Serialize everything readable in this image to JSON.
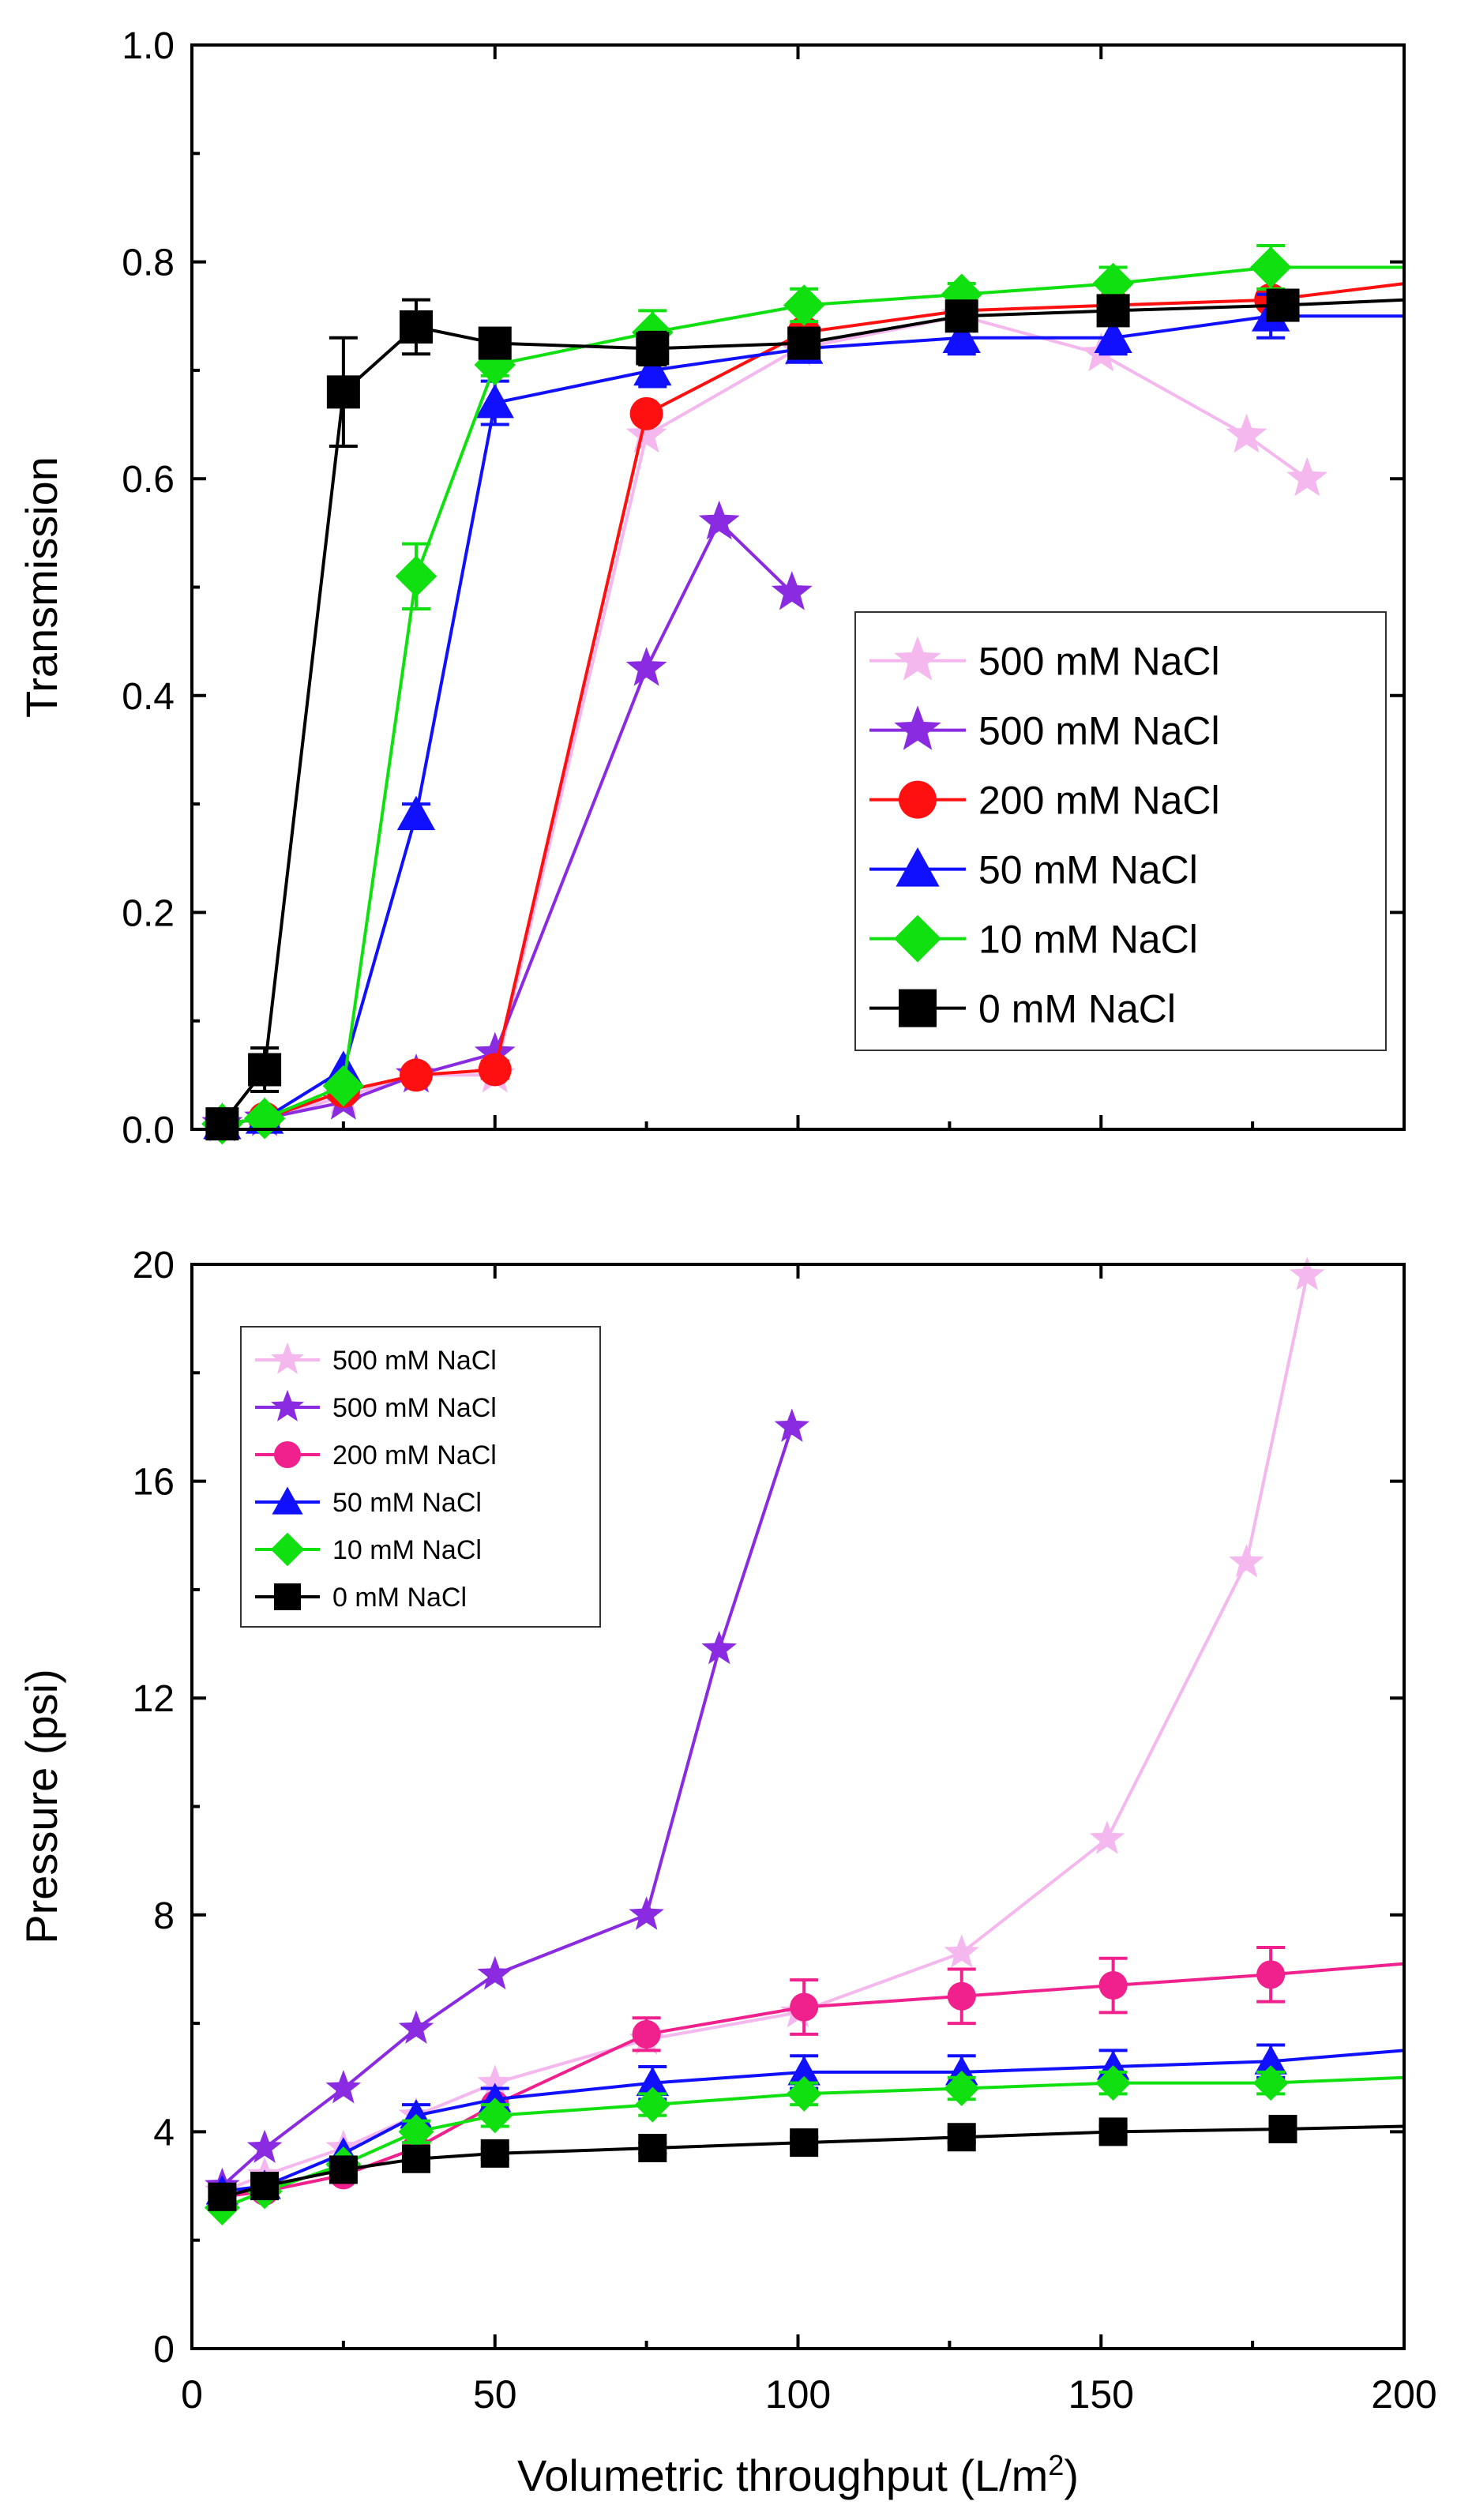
{
  "chart_data": [
    {
      "type": "line",
      "title": "",
      "xlabel": "",
      "ylabel": "Transmission",
      "xlim": [
        0,
        200
      ],
      "ylim": [
        0,
        1.0
      ],
      "xticks": [
        0,
        50,
        100,
        150,
        200
      ],
      "yticks": [
        0.0,
        0.2,
        0.4,
        0.6,
        0.8,
        1.0
      ],
      "xtick_labels": [
        "",
        "",
        "",
        "",
        ""
      ],
      "ytick_labels": [
        "0.0",
        "0.2",
        "0.4",
        "0.6",
        "0.8",
        "1.0"
      ],
      "grid": false,
      "legend": "middle-right",
      "series": [
        {
          "name": "500 mM NaCl",
          "color": "#f4b8ee",
          "marker": "star",
          "x": [
            5,
            12,
            25,
            37,
            50,
            75,
            100,
            127,
            150,
            174,
            184
          ],
          "y": [
            0.005,
            0.01,
            0.03,
            0.05,
            0.05,
            0.64,
            0.72,
            0.75,
            0.715,
            0.64,
            0.6
          ],
          "err": []
        },
        {
          "name": "500 mM NaCl",
          "color": "#8a2be2",
          "marker": "star",
          "x": [
            5,
            12,
            25,
            37,
            50,
            75,
            87,
            99
          ],
          "y": [
            0.005,
            0.01,
            0.025,
            0.05,
            0.07,
            0.425,
            0.56,
            0.495
          ],
          "err": []
        },
        {
          "name": "200 mM NaCl",
          "color": "#ff1010",
          "marker": "circle",
          "x": [
            5,
            12,
            25,
            37,
            50,
            75,
            101,
            127,
            152,
            178,
            200
          ],
          "y": [
            0.005,
            0.01,
            0.035,
            0.05,
            0.055,
            0.66,
            0.735,
            0.755,
            0.76,
            0.765,
            0.78
          ],
          "err": [
            0,
            0,
            0,
            0,
            0.008,
            0,
            0,
            0,
            0,
            0,
            0
          ]
        },
        {
          "name": "50 mM NaCl",
          "color": "#1010ff",
          "marker": "triangle",
          "x": [
            5,
            12,
            25,
            37,
            50,
            76,
            101,
            127,
            152,
            178,
            200
          ],
          "y": [
            0.005,
            0.01,
            0.055,
            0.29,
            0.67,
            0.7,
            0.72,
            0.73,
            0.73,
            0.75,
            0.75
          ],
          "err": [
            0,
            0,
            0,
            0.01,
            0.02,
            0.015,
            0.01,
            0.015,
            0.015,
            0.02,
            0
          ]
        },
        {
          "name": "10 mM NaCl",
          "color": "#10e010",
          "marker": "diamond",
          "x": [
            5,
            12,
            25,
            37,
            50,
            76,
            101,
            127,
            152,
            178,
            200
          ],
          "y": [
            0.005,
            0.01,
            0.04,
            0.51,
            0.705,
            0.735,
            0.76,
            0.77,
            0.78,
            0.795,
            0.795
          ],
          "err": [
            0,
            0,
            0,
            0.03,
            0.01,
            0.02,
            0.015,
            0.01,
            0.015,
            0.02,
            0
          ]
        },
        {
          "name": "0 mM NaCl",
          "color": "#000000",
          "marker": "square",
          "x": [
            5,
            12,
            25,
            37,
            50,
            76,
            101,
            127,
            152,
            180,
            200
          ],
          "y": [
            0.005,
            0.055,
            0.68,
            0.74,
            0.725,
            0.72,
            0.725,
            0.75,
            0.755,
            0.76,
            0.765
          ],
          "err": [
            0,
            0.02,
            0.05,
            0.025,
            0.01,
            0.015,
            0.01,
            0.01,
            0.01,
            0.01,
            0
          ]
        }
      ]
    },
    {
      "type": "line",
      "title": "",
      "xlabel": "Volumetric throughput (L/m",
      "xlabel_sup": "2",
      "xlabel_end": ")",
      "ylabel": "Pressure (psi)",
      "xlim": [
        0,
        200
      ],
      "ylim": [
        0,
        20
      ],
      "xticks": [
        0,
        50,
        100,
        150,
        200
      ],
      "yticks": [
        0,
        4,
        8,
        12,
        16,
        20
      ],
      "xtick_labels": [
        "0",
        "50",
        "100",
        "150",
        "200"
      ],
      "ytick_labels": [
        "0",
        "4",
        "8",
        "12",
        "16",
        "20"
      ],
      "grid": false,
      "legend": "top-left",
      "series": [
        {
          "name": "500 mM NaCl",
          "color": "#f4b8ee",
          "marker": "star",
          "x": [
            5,
            12,
            25,
            37,
            50,
            75,
            100,
            127,
            151,
            174,
            184
          ],
          "y": [
            2.9,
            3.2,
            3.7,
            4.3,
            4.9,
            5.7,
            6.2,
            7.3,
            9.4,
            14.5,
            19.8
          ],
          "err": []
        },
        {
          "name": "500 mM NaCl",
          "color": "#8a2be2",
          "marker": "star",
          "x": [
            5,
            12,
            25,
            37,
            50,
            75,
            87,
            99
          ],
          "y": [
            3.0,
            3.7,
            4.8,
            5.9,
            6.9,
            8.0,
            12.9,
            17.0
          ],
          "err": []
        },
        {
          "name": "200 mM NaCl",
          "color": "#f0208c",
          "marker": "circle",
          "x": [
            5,
            12,
            25,
            37,
            50,
            75,
            101,
            127,
            152,
            178,
            200
          ],
          "y": [
            2.8,
            2.9,
            3.2,
            3.7,
            4.5,
            5.8,
            6.3,
            6.5,
            6.7,
            6.9,
            7.1
          ],
          "err": [
            0,
            0,
            0,
            0,
            0,
            0.3,
            0.5,
            0.5,
            0.5,
            0.5,
            0
          ]
        },
        {
          "name": "50 mM NaCl",
          "color": "#1010ff",
          "marker": "triangle",
          "x": [
            5,
            12,
            25,
            37,
            50,
            76,
            101,
            127,
            152,
            178,
            200
          ],
          "y": [
            2.9,
            3.0,
            3.6,
            4.3,
            4.6,
            4.9,
            5.1,
            5.1,
            5.2,
            5.3,
            5.5
          ],
          "err": [
            0,
            0,
            0,
            0.2,
            0.2,
            0.3,
            0.3,
            0.3,
            0.3,
            0.3,
            0
          ]
        },
        {
          "name": "10 mM NaCl",
          "color": "#10e010",
          "marker": "diamond",
          "x": [
            5,
            12,
            25,
            37,
            50,
            76,
            101,
            127,
            152,
            178,
            200
          ],
          "y": [
            2.6,
            2.9,
            3.4,
            4.0,
            4.3,
            4.5,
            4.7,
            4.8,
            4.9,
            4.9,
            5.0
          ],
          "err": [
            0,
            0,
            0,
            0.2,
            0.2,
            0.2,
            0.2,
            0.2,
            0.2,
            0.2,
            0
          ]
        },
        {
          "name": "0 mM NaCl",
          "color": "#000000",
          "marker": "square",
          "x": [
            5,
            12,
            25,
            37,
            50,
            76,
            101,
            127,
            152,
            180,
            200
          ],
          "y": [
            2.8,
            3.0,
            3.3,
            3.5,
            3.6,
            3.7,
            3.8,
            3.9,
            4.0,
            4.05,
            4.1
          ],
          "err": [
            0,
            0,
            0,
            0.1,
            0.1,
            0.1,
            0.1,
            0.1,
            0.1,
            0.1,
            0
          ]
        }
      ]
    }
  ]
}
